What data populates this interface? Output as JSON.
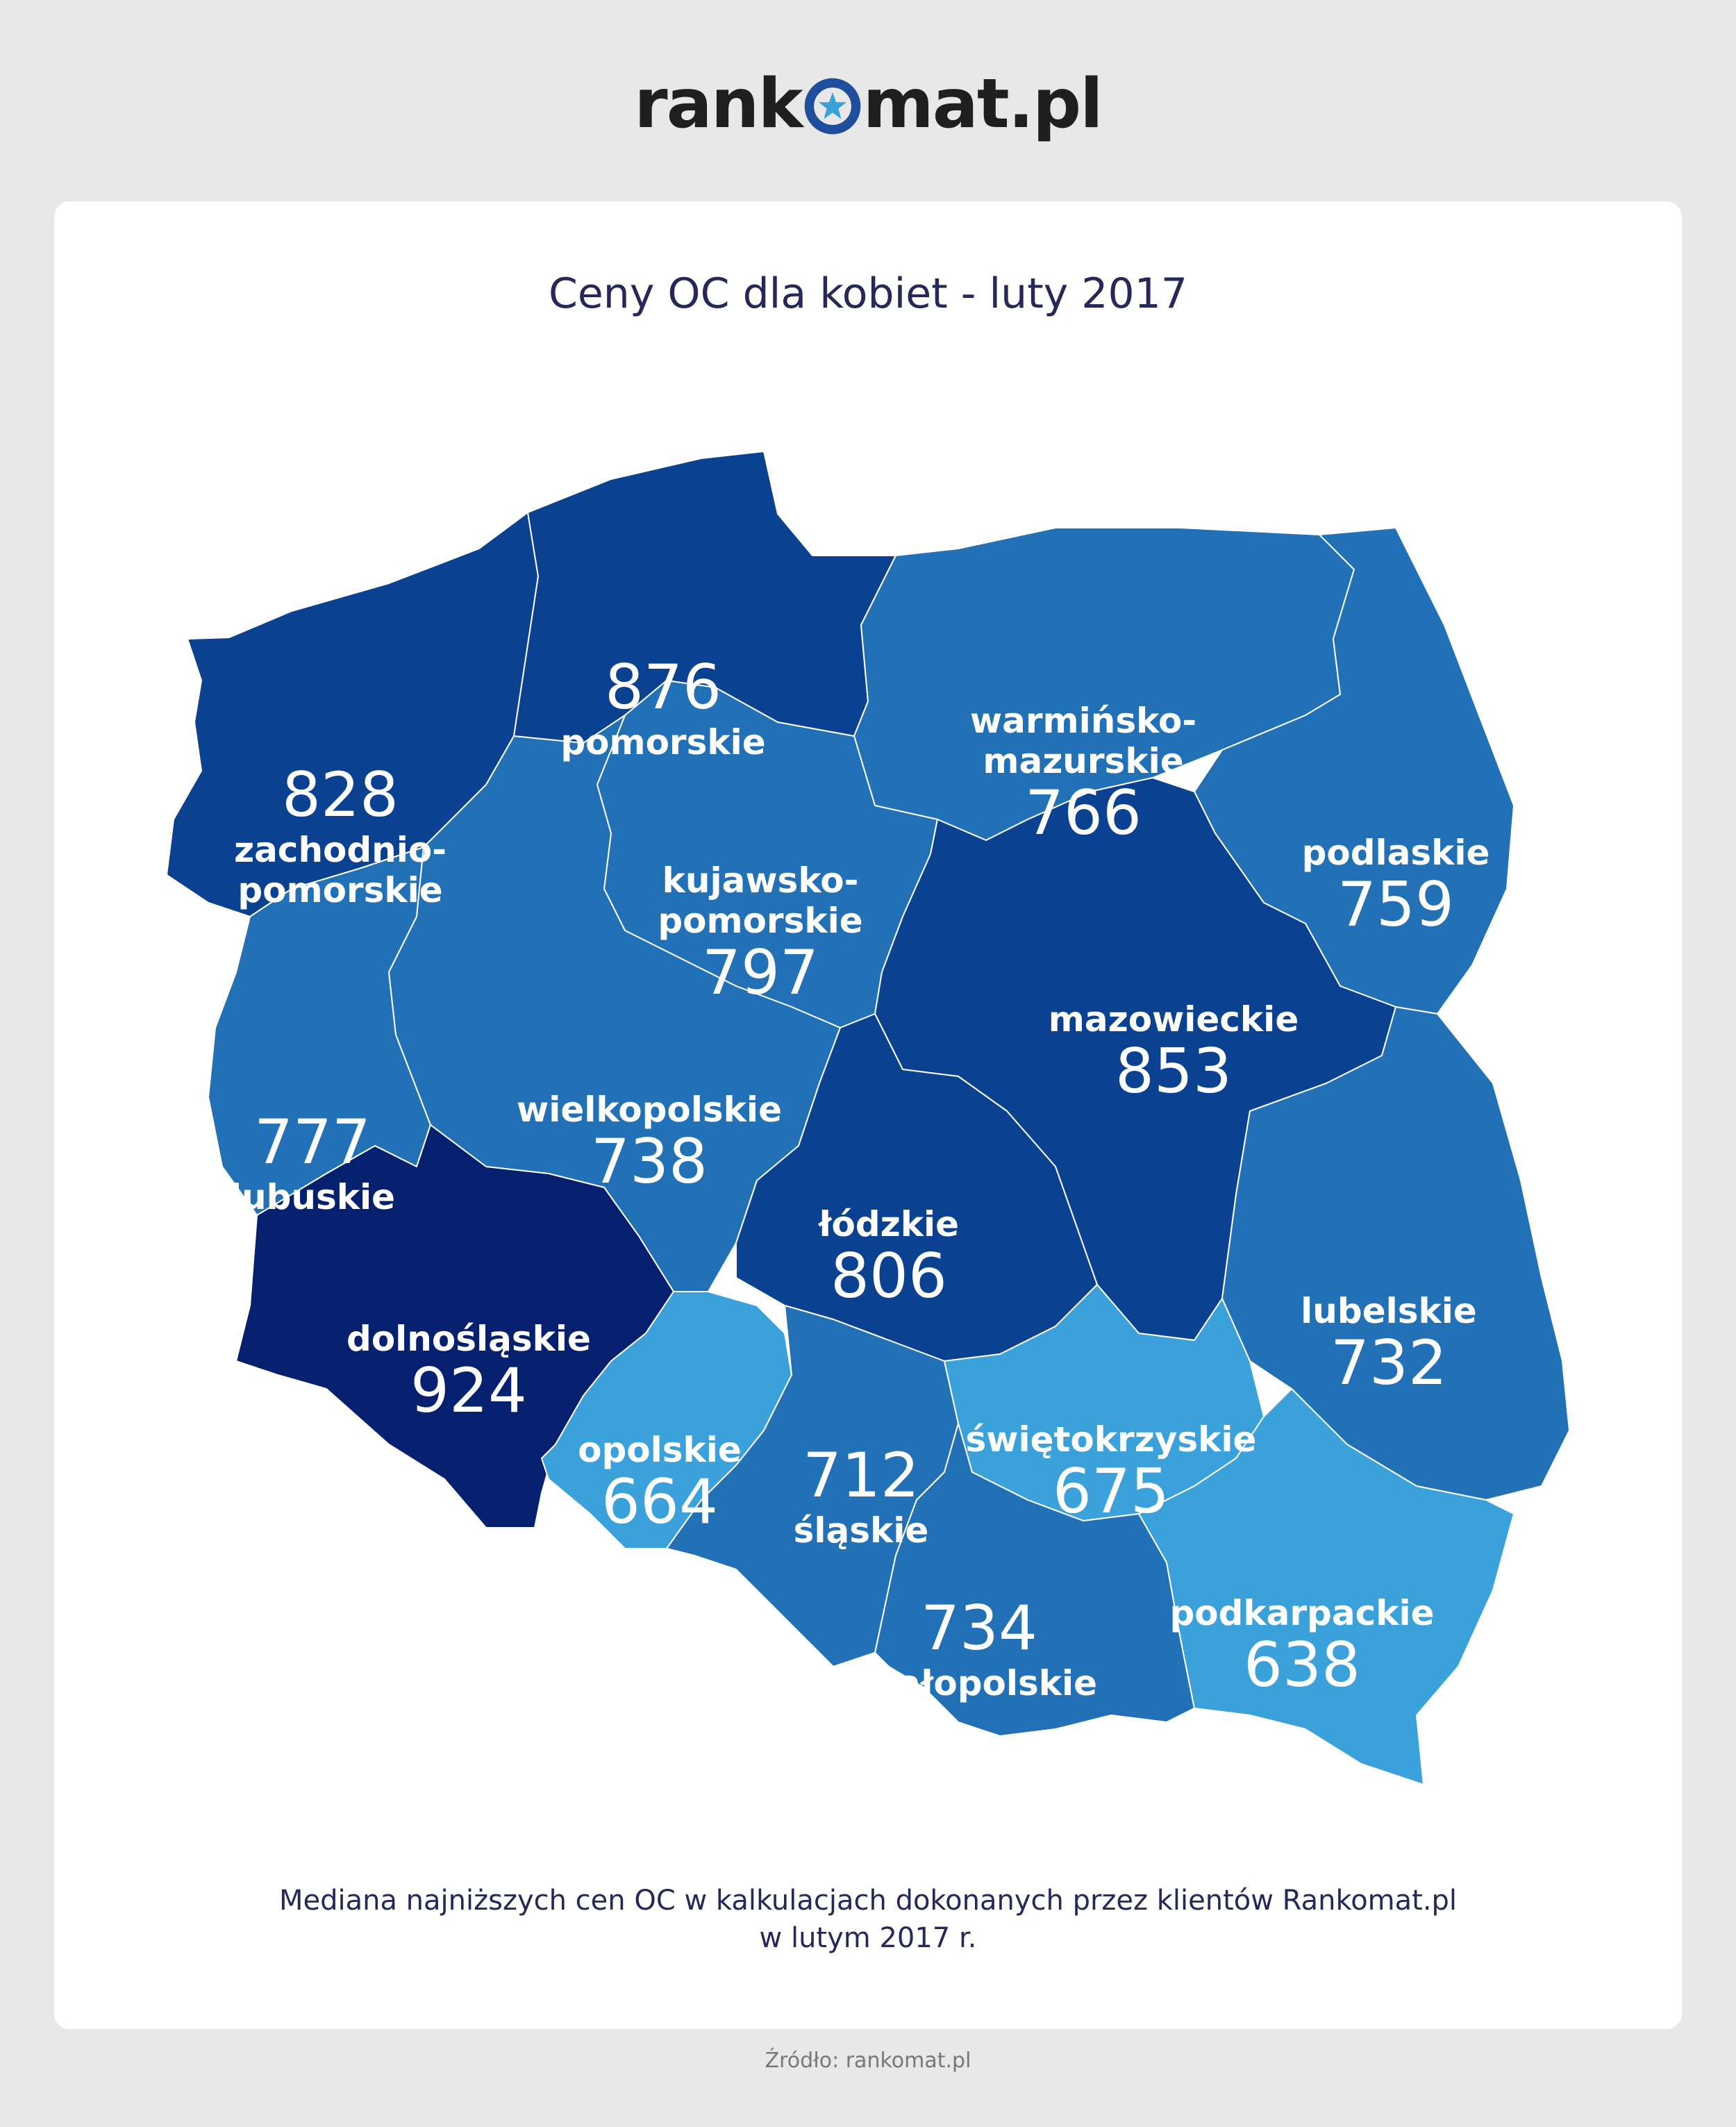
{
  "logo": {
    "text_left": "rank",
    "text_right": "mat.pl",
    "star_icon": "star-icon"
  },
  "title": "Ceny OC dla kobiet - luty 2017",
  "colors": {
    "very_dark": "#05206f",
    "dark": "#0a4291",
    "medium": "#2271b7",
    "light": "#3ba1da",
    "border": "#ffffff",
    "text": "#ffffff"
  },
  "regions": [
    {
      "id": "zachodniopomorskie",
      "label_lines": [
        "zachodnio-",
        "pomorskie"
      ],
      "value": 828,
      "shade": "dark"
    },
    {
      "id": "pomorskie",
      "label_lines": [
        "pomorskie"
      ],
      "value": 876,
      "shade": "dark"
    },
    {
      "id": "warminsko-mazurskie",
      "label_lines": [
        "warmińsko-",
        "mazurskie"
      ],
      "value": 766,
      "shade": "medium"
    },
    {
      "id": "podlaskie",
      "label_lines": [
        "podlaskie"
      ],
      "value": 759,
      "shade": "medium"
    },
    {
      "id": "kujawsko-pomorskie",
      "label_lines": [
        "kujawsko-",
        "pomorskie"
      ],
      "value": 797,
      "shade": "medium"
    },
    {
      "id": "mazowieckie",
      "label_lines": [
        "mazowieckie"
      ],
      "value": 853,
      "shade": "dark"
    },
    {
      "id": "lubuskie",
      "label_lines": [
        "lubuskie"
      ],
      "value": 777,
      "shade": "medium"
    },
    {
      "id": "wielkopolskie",
      "label_lines": [
        "wielkopolskie"
      ],
      "value": 738,
      "shade": "medium"
    },
    {
      "id": "lodzkie",
      "label_lines": [
        "łódzkie"
      ],
      "value": 806,
      "shade": "dark"
    },
    {
      "id": "lubelskie",
      "label_lines": [
        "lubelskie"
      ],
      "value": 732,
      "shade": "medium"
    },
    {
      "id": "dolnoslaskie",
      "label_lines": [
        "dolnośląskie"
      ],
      "value": 924,
      "shade": "very_dark"
    },
    {
      "id": "opolskie",
      "label_lines": [
        "opolskie"
      ],
      "value": 664,
      "shade": "light"
    },
    {
      "id": "slaskie",
      "label_lines": [
        "śląskie"
      ],
      "value": 712,
      "shade": "medium"
    },
    {
      "id": "swietokrzyskie",
      "label_lines": [
        "świętokrzyskie"
      ],
      "value": 675,
      "shade": "light"
    },
    {
      "id": "malopolskie",
      "label_lines": [
        "małopolskie"
      ],
      "value": 734,
      "shade": "medium"
    },
    {
      "id": "podkarpackie",
      "label_lines": [
        "podkarpackie"
      ],
      "value": 638,
      "shade": "light"
    }
  ],
  "caption_lines": [
    "Mediana najniższych cen OC w kalkulacjach dokonanych przez klientów Rankomat.pl",
    "w lutym 2017 r."
  ],
  "source": "Źródło: rankomat.pl"
}
